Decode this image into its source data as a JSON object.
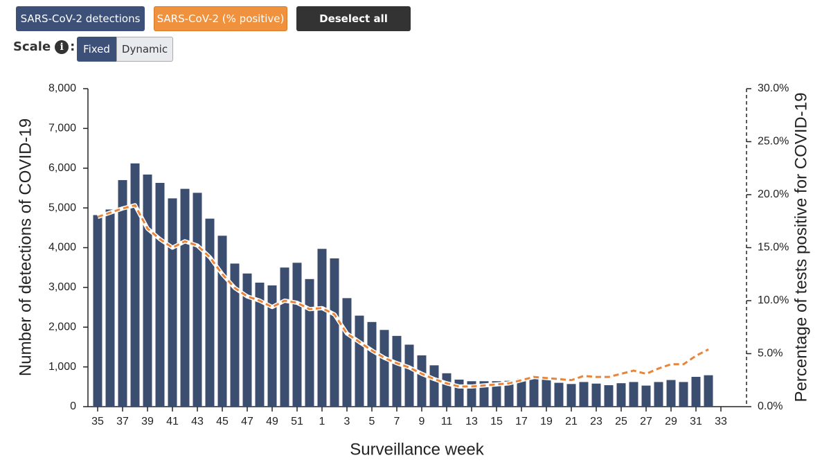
{
  "controls": {
    "series_buttons": [
      "SARS-CoV-2 detections",
      "SARS-CoV-2 (% positive)"
    ],
    "deselect": "Deselect all",
    "scale_label": "Scale",
    "info_icon": "i",
    "scale_options": [
      "Fixed",
      "Dynamic"
    ]
  },
  "chart_data": {
    "type": "bar",
    "xlabel": "Surveillance week",
    "ylabel": "Number of detections of COVID-19",
    "y2label": "Percentage of tests positive for COVID-19",
    "categories": [
      35,
      null,
      37,
      null,
      39,
      null,
      41,
      null,
      43,
      null,
      45,
      null,
      47,
      null,
      49,
      null,
      51,
      null,
      1,
      null,
      3,
      null,
      5,
      null,
      7,
      null,
      9,
      null,
      11,
      null,
      13,
      null,
      15,
      null,
      17,
      null,
      19,
      null,
      21,
      null,
      23,
      null,
      25,
      null,
      27,
      null,
      29,
      null,
      31,
      null,
      33
    ],
    "series": [
      {
        "name": "SARS-CoV-2 detections",
        "type": "bar",
        "color": "#3c4e70",
        "values": [
          4820,
          4960,
          5700,
          6120,
          5840,
          5630,
          5240,
          5480,
          5380,
          4730,
          4300,
          3600,
          3350,
          3120,
          3050,
          3500,
          3620,
          3210,
          3970,
          3730,
          2730,
          2290,
          2130,
          1930,
          1780,
          1560,
          1290,
          1040,
          840,
          680,
          640,
          640,
          640,
          650,
          700,
          760,
          680,
          600,
          570,
          620,
          580,
          540,
          590,
          620,
          530,
          620,
          670,
          620,
          750,
          790,
          null
        ]
      },
      {
        "name": "SARS-CoV-2 (% positive)",
        "type": "line",
        "axis": "y2",
        "color": "#e8853a",
        "values": [
          17.9,
          18.3,
          18.7,
          19.0,
          16.8,
          15.8,
          15.0,
          15.6,
          15.2,
          14.1,
          12.5,
          11.2,
          10.4,
          10.0,
          9.4,
          10.0,
          9.8,
          9.2,
          9.3,
          8.7,
          6.9,
          6.1,
          5.3,
          4.6,
          4.1,
          3.7,
          3.1,
          2.6,
          2.2,
          1.9,
          1.9,
          2.0,
          2.1,
          2.2,
          2.5,
          2.8,
          2.7,
          2.6,
          2.5,
          2.9,
          2.8,
          2.8,
          3.1,
          3.4,
          3.1,
          3.6,
          4.0,
          4.0,
          4.8,
          5.4,
          null
        ]
      }
    ],
    "ylim": [
      0,
      8000
    ],
    "yticks": [
      0,
      {
        "value": 1000,
        "label": "1,000"
      },
      {
        "value": 2000,
        "label": "2,000"
      },
      {
        "value": 3000,
        "label": "3,000"
      },
      {
        "value": 4000,
        "label": "4,000"
      },
      {
        "value": 5000,
        "label": "5,000"
      },
      {
        "value": 6000,
        "label": "6,000"
      },
      {
        "value": 7000,
        "label": "7,000"
      },
      {
        "value": 8000,
        "label": "8,000"
      }
    ],
    "y2lim": [
      0,
      30
    ],
    "y2ticks": [
      {
        "value": 0,
        "label": "0.0%"
      },
      {
        "value": 5,
        "label": "5.0%"
      },
      {
        "value": 10,
        "label": "10.0%"
      },
      {
        "value": 15,
        "label": "15.0%"
      },
      {
        "value": 20,
        "label": "20.0%"
      },
      {
        "value": 25,
        "label": "25.0%"
      },
      {
        "value": 30,
        "label": "30.0%"
      }
    ]
  }
}
